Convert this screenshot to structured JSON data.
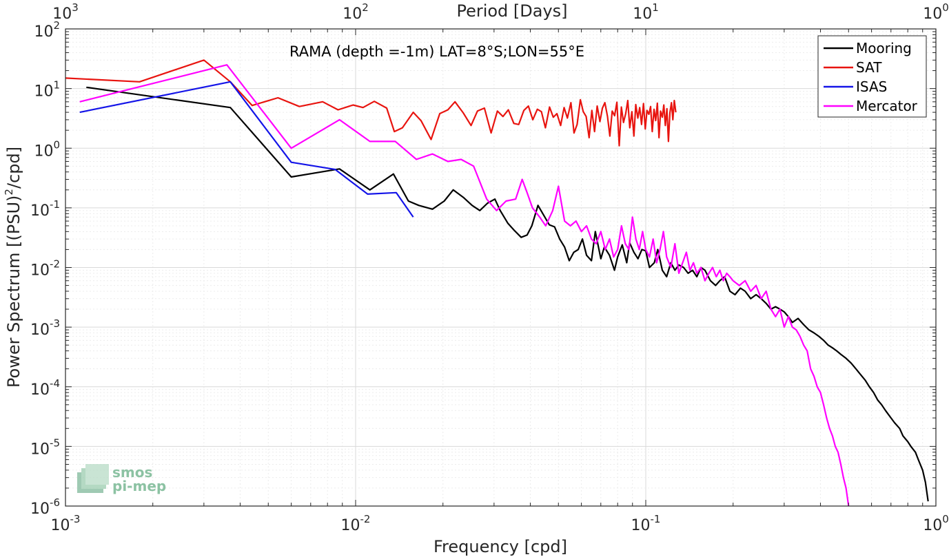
{
  "chart_data": {
    "type": "line",
    "title": "RAMA (depth =-1m) LAT=8°S;LON=55°E",
    "xlabel": "Frequency [cpd]",
    "x2label": "Period [Days]",
    "ylabel": "Power Spectrum [(PSU)^2/cpd]",
    "ylabel_main": "Power Spectrum [(PSU)",
    "ylabel_sup": "2",
    "ylabel_tail": "/cpd]",
    "xscale": "log",
    "yscale": "log",
    "xlim": [
      0.001,
      1
    ],
    "ylim": [
      1e-06,
      100
    ],
    "grid": true,
    "legend_position": "top-right",
    "x_ticks": [
      {
        "value": 0.001,
        "base": "10",
        "exp": "-3"
      },
      {
        "value": 0.01,
        "base": "10",
        "exp": "-2"
      },
      {
        "value": 0.1,
        "base": "10",
        "exp": "-1"
      },
      {
        "value": 1,
        "base": "10",
        "exp": "0"
      }
    ],
    "x2_ticks": [
      {
        "value": 0.001,
        "base": "10",
        "exp": "3"
      },
      {
        "value": 0.01,
        "base": "10",
        "exp": "2"
      },
      {
        "value": 0.1,
        "base": "10",
        "exp": "1"
      },
      {
        "value": 1,
        "base": "10",
        "exp": "0"
      }
    ],
    "y_ticks": [
      {
        "value": 100,
        "base": "10",
        "exp": "2"
      },
      {
        "value": 10,
        "base": "10",
        "exp": "1"
      },
      {
        "value": 1,
        "base": "10",
        "exp": "0"
      },
      {
        "value": 0.1,
        "base": "10",
        "exp": "-1"
      },
      {
        "value": 0.01,
        "base": "10",
        "exp": "-2"
      },
      {
        "value": 0.001,
        "base": "10",
        "exp": "-3"
      },
      {
        "value": 0.0001,
        "base": "10",
        "exp": "-4"
      },
      {
        "value": 1e-05,
        "base": "10",
        "exp": "-5"
      },
      {
        "value": 1e-06,
        "base": "10",
        "exp": "-6"
      }
    ],
    "series": [
      {
        "name": "Mooring",
        "color": "#000000",
        "x": [
          0.00118,
          0.0037,
          0.006,
          0.0088,
          0.0112,
          0.0135,
          0.0152,
          0.0165,
          0.0184,
          0.0202,
          0.0217,
          0.0235,
          0.0252,
          0.0268,
          0.0285,
          0.0302,
          0.0315,
          0.0335,
          0.0352,
          0.0372,
          0.039,
          0.0405,
          0.0425,
          0.0445,
          0.0465,
          0.0485,
          0.0505,
          0.0525,
          0.0545,
          0.0565,
          0.0585,
          0.0605,
          0.0625,
          0.065,
          0.067,
          0.07,
          0.072,
          0.075,
          0.078,
          0.08,
          0.083,
          0.086,
          0.088,
          0.091,
          0.094,
          0.097,
          0.1,
          0.103,
          0.107,
          0.11,
          0.114,
          0.118,
          0.122,
          0.126,
          0.13,
          0.135,
          0.14,
          0.145,
          0.15,
          0.155,
          0.16,
          0.167,
          0.174,
          0.18,
          0.187,
          0.195,
          0.203,
          0.212,
          0.22,
          0.23,
          0.24,
          0.25,
          0.26,
          0.27,
          0.28,
          0.29,
          0.3,
          0.31,
          0.32,
          0.335,
          0.35,
          0.365,
          0.38,
          0.395,
          0.41,
          0.425,
          0.44,
          0.455,
          0.47,
          0.49,
          0.51,
          0.53,
          0.55,
          0.57,
          0.59,
          0.61,
          0.63,
          0.65,
          0.67,
          0.7,
          0.72,
          0.75,
          0.77,
          0.8,
          0.82,
          0.85,
          0.87,
          0.9,
          0.92,
          0.94
        ],
        "y": [
          10.5,
          4.8,
          0.33,
          0.45,
          0.2,
          0.37,
          0.13,
          0.11,
          0.095,
          0.13,
          0.2,
          0.15,
          0.11,
          0.09,
          0.12,
          0.14,
          0.09,
          0.055,
          0.042,
          0.032,
          0.035,
          0.05,
          0.11,
          0.075,
          0.052,
          0.048,
          0.03,
          0.022,
          0.013,
          0.018,
          0.02,
          0.03,
          0.016,
          0.013,
          0.04,
          0.014,
          0.022,
          0.016,
          0.009,
          0.015,
          0.024,
          0.012,
          0.026,
          0.018,
          0.014,
          0.02,
          0.019,
          0.01,
          0.012,
          0.02,
          0.009,
          0.007,
          0.012,
          0.009,
          0.011,
          0.01,
          0.008,
          0.009,
          0.007,
          0.01,
          0.009,
          0.006,
          0.005,
          0.006,
          0.007,
          0.004,
          0.0035,
          0.0045,
          0.004,
          0.003,
          0.0035,
          0.003,
          0.0025,
          0.002,
          0.0022,
          0.002,
          0.0018,
          0.0015,
          0.0012,
          0.0014,
          0.0011,
          0.0009,
          0.0008,
          0.0007,
          0.0006,
          0.0005,
          0.00045,
          0.0004,
          0.00035,
          0.0003,
          0.00025,
          0.0002,
          0.00016,
          0.00013,
          0.0001,
          8e-05,
          6e-05,
          5e-05,
          4e-05,
          3e-05,
          2.5e-05,
          2e-05,
          1.5e-05,
          1.2e-05,
          1e-05,
          8e-06,
          6e-06,
          4e-06,
          2.5e-06,
          1.2e-06
        ]
      },
      {
        "name": "SAT",
        "color": "#e8140f",
        "x": [
          0.001,
          0.0018,
          0.003,
          0.0037,
          0.0044,
          0.0054,
          0.0064,
          0.0077,
          0.0087,
          0.0098,
          0.0106,
          0.0116,
          0.0128,
          0.0136,
          0.0145,
          0.0158,
          0.0168,
          0.0182,
          0.0195,
          0.0208,
          0.022,
          0.0235,
          0.025,
          0.0263,
          0.0278,
          0.0293,
          0.0308,
          0.0322,
          0.0336,
          0.0351,
          0.0365,
          0.038,
          0.0394,
          0.0408,
          0.0423,
          0.0437,
          0.0451,
          0.0466,
          0.048,
          0.0494,
          0.0509,
          0.0523,
          0.0537,
          0.0552,
          0.0566,
          0.058,
          0.0595,
          0.0609,
          0.0623,
          0.0638,
          0.0652,
          0.0666,
          0.068,
          0.0695,
          0.0709,
          0.0723,
          0.0738,
          0.0752,
          0.0766,
          0.0781,
          0.0795,
          0.081,
          0.0824,
          0.0838,
          0.0853,
          0.0867,
          0.0881,
          0.0896,
          0.091,
          0.0924,
          0.0939,
          0.0953,
          0.0967,
          0.0982,
          0.0996,
          0.101,
          0.1025,
          0.1039,
          0.1053,
          0.1068,
          0.1082,
          0.1096,
          0.1111,
          0.1125,
          0.114,
          0.1154,
          0.1168,
          0.1183,
          0.1197,
          0.1211,
          0.1226,
          0.124,
          0.1254,
          0.1269
        ],
        "y": [
          15,
          13,
          30,
          13,
          5.2,
          7,
          5,
          6,
          4.4,
          5.3,
          4.8,
          6.1,
          4.7,
          1.9,
          2.2,
          4.0,
          2.9,
          1.4,
          3.8,
          4.4,
          6.0,
          3.9,
          2.4,
          4.2,
          4.7,
          1.8,
          4.2,
          3.4,
          4.4,
          2.6,
          2.5,
          4.3,
          5.1,
          3.0,
          4.5,
          4.1,
          2.2,
          4.9,
          3.3,
          3.8,
          2.4,
          4.8,
          3.2,
          5.8,
          1.8,
          2.5,
          6.5,
          4.1,
          3.4,
          1.5,
          4.3,
          1.9,
          5.1,
          2.8,
          4.7,
          5.8,
          3.4,
          1.6,
          4.2,
          3.5,
          5.9,
          1.1,
          4.9,
          2.7,
          3.8,
          6.3,
          2.2,
          4.1,
          1.6,
          5.4,
          3.2,
          4.8,
          2.5,
          5.6,
          2.1,
          4.3,
          3.7,
          5.0,
          1.9,
          4.5,
          2.9,
          5.7,
          1.5,
          4.2,
          3.3,
          5.3,
          2.4,
          4.6,
          1.3,
          3.9,
          5.8,
          3.0,
          6.3,
          4.0
        ]
      },
      {
        "name": "ISAS",
        "color": "#1414e8",
        "x": [
          0.00112,
          0.0037,
          0.006,
          0.0085,
          0.011,
          0.0138,
          0.0158
        ],
        "y": [
          4.0,
          13,
          0.58,
          0.44,
          0.17,
          0.18,
          0.07
        ]
      },
      {
        "name": "Mercator",
        "color": "#ff00ff",
        "x": [
          0.00112,
          0.0036,
          0.006,
          0.0088,
          0.0112,
          0.0137,
          0.0162,
          0.0184,
          0.0208,
          0.0231,
          0.0255,
          0.0283,
          0.0306,
          0.033,
          0.0356,
          0.0375,
          0.039,
          0.0407,
          0.0431,
          0.0452,
          0.0478,
          0.05,
          0.0525,
          0.055,
          0.0575,
          0.06,
          0.0625,
          0.065,
          0.0675,
          0.07,
          0.0725,
          0.075,
          0.0775,
          0.08,
          0.0825,
          0.085,
          0.0875,
          0.09,
          0.0925,
          0.095,
          0.0975,
          0.1,
          0.103,
          0.106,
          0.109,
          0.112,
          0.115,
          0.118,
          0.122,
          0.126,
          0.13,
          0.134,
          0.138,
          0.142,
          0.146,
          0.15,
          0.155,
          0.16,
          0.165,
          0.17,
          0.175,
          0.18,
          0.185,
          0.19,
          0.195,
          0.2,
          0.21,
          0.22,
          0.23,
          0.24,
          0.25,
          0.26,
          0.27,
          0.28,
          0.29,
          0.3,
          0.31,
          0.32,
          0.33,
          0.34,
          0.35,
          0.36,
          0.37,
          0.38,
          0.39,
          0.4,
          0.41,
          0.42,
          0.43,
          0.44,
          0.45,
          0.46,
          0.47,
          0.48,
          0.49,
          0.5
        ],
        "y": [
          6.0,
          25,
          1.0,
          3.0,
          1.3,
          1.3,
          0.65,
          0.8,
          0.6,
          0.65,
          0.5,
          0.14,
          0.09,
          0.13,
          0.14,
          0.3,
          0.18,
          0.1,
          0.07,
          0.05,
          0.09,
          0.23,
          0.06,
          0.05,
          0.06,
          0.04,
          0.05,
          0.03,
          0.025,
          0.04,
          0.02,
          0.03,
          0.015,
          0.02,
          0.05,
          0.025,
          0.02,
          0.07,
          0.03,
          0.02,
          0.04,
          0.02,
          0.015,
          0.03,
          0.012,
          0.02,
          0.04,
          0.015,
          0.01,
          0.025,
          0.008,
          0.012,
          0.018,
          0.009,
          0.012,
          0.008,
          0.01,
          0.006,
          0.008,
          0.01,
          0.007,
          0.009,
          0.006,
          0.008,
          0.007,
          0.006,
          0.005,
          0.006,
          0.004,
          0.005,
          0.003,
          0.004,
          0.002,
          0.0015,
          0.002,
          0.001,
          0.0015,
          0.001,
          0.0009,
          0.0007,
          0.0005,
          0.0004,
          0.0002,
          0.00015,
          0.0001,
          8e-05,
          5e-05,
          3e-05,
          2e-05,
          1.5e-05,
          1e-05,
          8e-06,
          5e-06,
          3e-06,
          2e-06,
          1e-06
        ]
      }
    ],
    "logo_text_line1": "smos",
    "logo_text_line2": "pi-mep"
  }
}
